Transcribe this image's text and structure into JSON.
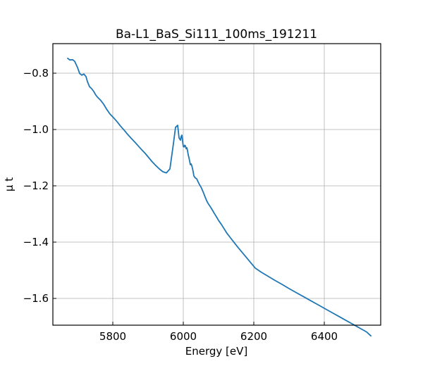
{
  "chart_data": {
    "type": "line",
    "title": "Ba-L1_BaS_Si111_100ms_191211",
    "xlabel": "Energy [eV]",
    "ylabel": "μ t",
    "xlim": [
      5630,
      6560
    ],
    "ylim": [
      -1.695,
      -0.695
    ],
    "x_ticks": [
      5800,
      6000,
      6200,
      6400
    ],
    "x_tick_labels": [
      "5800",
      "6000",
      "6200",
      "6400"
    ],
    "y_ticks": [
      -0.8,
      -1.0,
      -1.2,
      -1.4,
      -1.6
    ],
    "y_tick_labels": [
      "−0.8",
      "−1.0",
      "−1.2",
      "−1.4",
      "−1.6"
    ],
    "grid": true,
    "line_color": "#1f77b4",
    "series": [
      {
        "x": [
          5672,
          5678,
          5686,
          5692,
          5700,
          5706,
          5712,
          5718,
          5724,
          5728,
          5734,
          5740,
          5746,
          5752,
          5758,
          5766,
          5774,
          5782,
          5792,
          5802,
          5812,
          5822,
          5832,
          5842,
          5852,
          5862,
          5872,
          5882,
          5892,
          5902,
          5912,
          5922,
          5932,
          5942,
          5952,
          5962,
          5972,
          5978,
          5984,
          5988,
          5992,
          5994,
          5996,
          5998,
          6000,
          6002,
          6004,
          6006,
          6008,
          6010,
          6012,
          6014,
          6016,
          6018,
          6020,
          6022,
          6024,
          6026,
          6028,
          6030,
          6034,
          6038,
          6042,
          6046,
          6050,
          6054,
          6058,
          6062,
          6066,
          6070,
          6076,
          6082,
          6088,
          6094,
          6100,
          6108,
          6116,
          6124,
          6134,
          6144,
          6154,
          6164,
          6174,
          6184,
          6194,
          6204,
          6220,
          6240,
          6260,
          6280,
          6300,
          6320,
          6340,
          6360,
          6380,
          6400,
          6420,
          6440,
          6460,
          6480,
          6500,
          6520,
          6532
        ],
        "y": [
          -0.747,
          -0.753,
          -0.752,
          -0.758,
          -0.78,
          -0.801,
          -0.807,
          -0.803,
          -0.812,
          -0.83,
          -0.848,
          -0.855,
          -0.865,
          -0.878,
          -0.887,
          -0.897,
          -0.91,
          -0.927,
          -0.945,
          -0.958,
          -0.972,
          -0.988,
          -1.002,
          -1.017,
          -1.031,
          -1.044,
          -1.058,
          -1.072,
          -1.085,
          -1.1,
          -1.115,
          -1.128,
          -1.14,
          -1.15,
          -1.154,
          -1.14,
          -1.05,
          -0.992,
          -0.985,
          -1.03,
          -1.038,
          -1.025,
          -1.02,
          -1.042,
          -1.06,
          -1.062,
          -1.056,
          -1.058,
          -1.068,
          -1.065,
          -1.075,
          -1.09,
          -1.1,
          -1.112,
          -1.125,
          -1.122,
          -1.128,
          -1.138,
          -1.15,
          -1.165,
          -1.172,
          -1.175,
          -1.186,
          -1.196,
          -1.204,
          -1.215,
          -1.227,
          -1.24,
          -1.252,
          -1.262,
          -1.273,
          -1.285,
          -1.298,
          -1.31,
          -1.323,
          -1.337,
          -1.353,
          -1.369,
          -1.385,
          -1.401,
          -1.417,
          -1.432,
          -1.447,
          -1.462,
          -1.477,
          -1.492,
          -1.506,
          -1.521,
          -1.536,
          -1.55,
          -1.565,
          -1.579,
          -1.593,
          -1.607,
          -1.621,
          -1.635,
          -1.649,
          -1.663,
          -1.677,
          -1.691,
          -1.705,
          -1.719,
          -1.733
        ]
      }
    ]
  }
}
